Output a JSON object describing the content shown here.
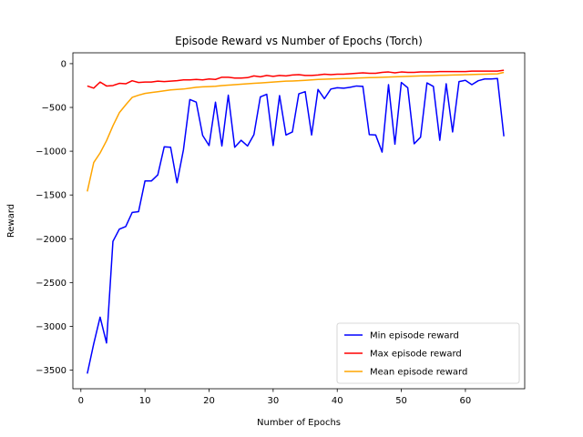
{
  "chart_data": {
    "type": "line",
    "title": "Episode Reward vs Number of Epochs (Torch)",
    "xlabel": "Number of Epochs",
    "ylabel": "Reward",
    "xlim": [
      -1.25,
      69.25
    ],
    "ylim": [
      -3713,
      124
    ],
    "xticks": [
      0,
      10,
      20,
      30,
      40,
      50,
      60
    ],
    "xtick_labels": [
      "0",
      "10",
      "20",
      "30",
      "40",
      "50",
      "60"
    ],
    "yticks": [
      0,
      -500,
      -1000,
      -1500,
      -2000,
      -2500,
      -3000,
      -3500
    ],
    "ytick_labels": [
      "0",
      "−500",
      "−1000",
      "−1500",
      "−2000",
      "−2500",
      "−3000",
      "−3500"
    ],
    "grid": false,
    "legend_position": "lower-right",
    "x": [
      1,
      2,
      3,
      4,
      5,
      6,
      7,
      8,
      9,
      10,
      11,
      12,
      13,
      14,
      15,
      16,
      17,
      18,
      19,
      20,
      21,
      22,
      23,
      24,
      25,
      26,
      27,
      28,
      29,
      30,
      31,
      32,
      33,
      34,
      35,
      36,
      37,
      38,
      39,
      40,
      41,
      42,
      43,
      44,
      45,
      46,
      47,
      48,
      49,
      50,
      51,
      52,
      53,
      54,
      55,
      56,
      57,
      58,
      59,
      60,
      61,
      62,
      63,
      64,
      65,
      66
    ],
    "series": [
      {
        "name": "Min episode reward",
        "color": "#0000ff",
        "values": [
          -3540,
          -3200,
          -2895,
          -3190,
          -2030,
          -1890,
          -1860,
          -1700,
          -1690,
          -1340,
          -1340,
          -1270,
          -950,
          -955,
          -1360,
          -985,
          -410,
          -440,
          -820,
          -935,
          -440,
          -940,
          -360,
          -955,
          -875,
          -940,
          -810,
          -380,
          -350,
          -935,
          -365,
          -815,
          -780,
          -345,
          -320,
          -815,
          -295,
          -400,
          -290,
          -275,
          -280,
          -270,
          -255,
          -260,
          -810,
          -815,
          -1010,
          -240,
          -920,
          -215,
          -275,
          -915,
          -840,
          -220,
          -260,
          -875,
          -230,
          -780,
          -205,
          -190,
          -240,
          -195,
          -175,
          -175,
          -170,
          -830
        ]
      },
      {
        "name": "Max episode reward",
        "color": "#ff0000",
        "values": [
          -255,
          -280,
          -210,
          -255,
          -250,
          -225,
          -230,
          -195,
          -215,
          -210,
          -210,
          -200,
          -205,
          -200,
          -195,
          -185,
          -185,
          -180,
          -185,
          -175,
          -180,
          -155,
          -155,
          -165,
          -165,
          -160,
          -140,
          -150,
          -135,
          -145,
          -135,
          -140,
          -130,
          -125,
          -135,
          -135,
          -130,
          -120,
          -125,
          -120,
          -120,
          -115,
          -110,
          -105,
          -110,
          -110,
          -100,
          -95,
          -105,
          -95,
          -100,
          -100,
          -95,
          -95,
          -95,
          -90,
          -90,
          -90,
          -90,
          -90,
          -85,
          -85,
          -85,
          -85,
          -85,
          -75
        ]
      },
      {
        "name": "Mean episode reward",
        "color": "#ffa500",
        "values": [
          -1460,
          -1130,
          -1020,
          -880,
          -710,
          -560,
          -470,
          -385,
          -360,
          -340,
          -330,
          -320,
          -310,
          -300,
          -295,
          -290,
          -280,
          -270,
          -265,
          -262,
          -258,
          -250,
          -245,
          -240,
          -235,
          -230,
          -225,
          -220,
          -215,
          -210,
          -205,
          -200,
          -198,
          -195,
          -190,
          -185,
          -180,
          -178,
          -175,
          -172,
          -170,
          -168,
          -165,
          -162,
          -160,
          -158,
          -155,
          -153,
          -150,
          -148,
          -145,
          -143,
          -140,
          -138,
          -136,
          -134,
          -132,
          -130,
          -128,
          -126,
          -124,
          -122,
          -120,
          -118,
          -116,
          -100
        ]
      }
    ]
  }
}
